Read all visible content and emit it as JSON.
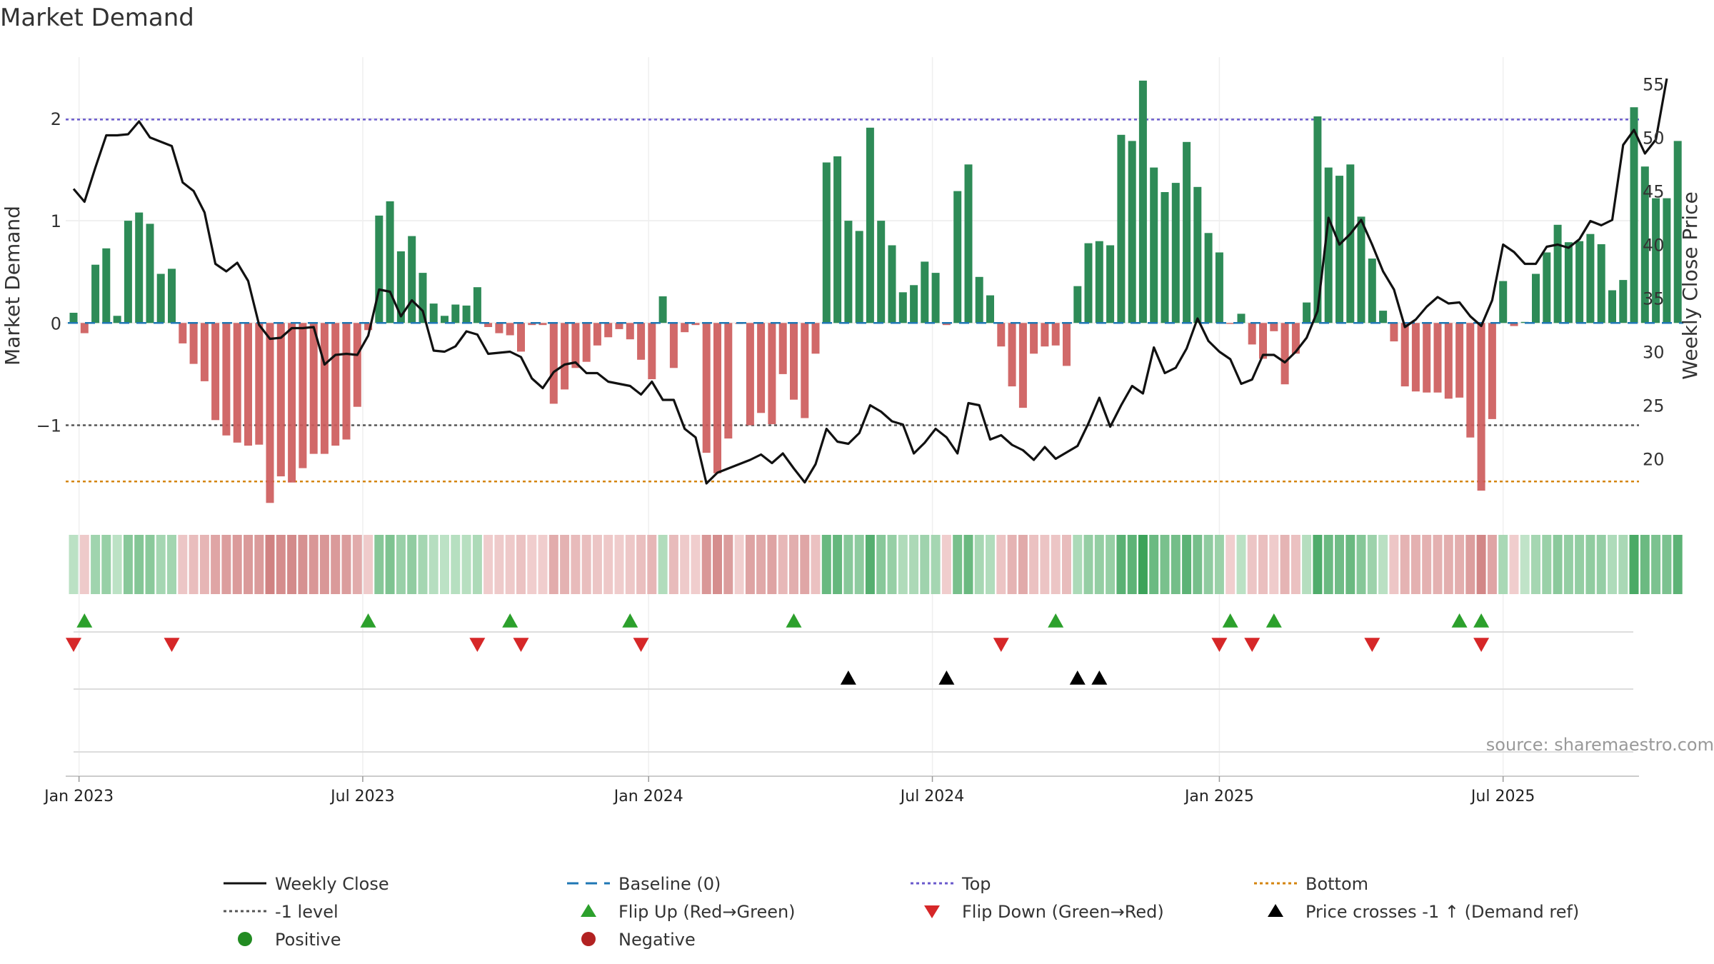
{
  "chart_data": {
    "type": "bar",
    "title": "Market Demand",
    "ylabel_left": "Market Demand",
    "ylabel_right": "Weekly Close Price",
    "source": "source: sharemaestro.com",
    "left_ylim": [
      -1.8,
      2.6
    ],
    "right_ylim": [
      15.5,
      57.5
    ],
    "left_ticks": [
      {
        "v": 2,
        "label": "2"
      },
      {
        "v": 1,
        "label": "1"
      },
      {
        "v": 0,
        "label": "0"
      },
      {
        "v": -1,
        "label": "−1"
      }
    ],
    "right_ticks": [
      {
        "v": 55,
        "label": "55"
      },
      {
        "v": 50,
        "label": "50"
      },
      {
        "v": 45,
        "label": "45"
      },
      {
        "v": 40,
        "label": "40"
      },
      {
        "v": 35,
        "label": "35"
      },
      {
        "v": 30,
        "label": "30"
      },
      {
        "v": 25,
        "label": "25"
      },
      {
        "v": 20,
        "label": "20"
      }
    ],
    "x_ticks": [
      {
        "i": 0.5,
        "label": "Jan 2023"
      },
      {
        "i": 26.5,
        "label": "Jul 2023"
      },
      {
        "i": 52.7,
        "label": "Jan 2024"
      },
      {
        "i": 78.7,
        "label": "Jul 2024"
      },
      {
        "i": 105,
        "label": "Jan 2025"
      },
      {
        "i": 131,
        "label": "Jul 2025"
      }
    ],
    "reference_lines": {
      "top": 1.99,
      "bottom": -1.55,
      "minus_one": -1.0,
      "baseline": 0
    },
    "demand": [
      0.1,
      -0.1,
      0.57,
      0.73,
      0.07,
      1.0,
      1.08,
      0.97,
      0.48,
      0.53,
      -0.2,
      -0.4,
      -0.57,
      -0.95,
      -1.1,
      -1.17,
      -1.2,
      -1.19,
      -1.76,
      -1.5,
      -1.56,
      -1.42,
      -1.28,
      -1.28,
      -1.2,
      -1.14,
      -0.82,
      -0.07,
      1.05,
      1.19,
      0.7,
      0.85,
      0.49,
      0.19,
      0.07,
      0.18,
      0.17,
      0.35,
      -0.04,
      -0.1,
      -0.12,
      -0.28,
      -0.02,
      -0.02,
      -0.79,
      -0.65,
      -0.44,
      -0.38,
      -0.22,
      -0.14,
      -0.06,
      -0.16,
      -0.36,
      -0.55,
      0.26,
      -0.44,
      -0.09,
      -0.02,
      -1.27,
      -1.47,
      -1.13,
      -0.01,
      -1.0,
      -0.88,
      -0.99,
      -0.5,
      -0.75,
      -0.93,
      -0.3,
      1.57,
      1.63,
      1.0,
      0.9,
      1.91,
      1.0,
      0.76,
      0.3,
      0.37,
      0.6,
      0.49,
      -0.02,
      1.29,
      1.55,
      0.45,
      0.27,
      -0.23,
      -0.62,
      -0.83,
      -0.3,
      -0.23,
      -0.22,
      -0.42,
      0.36,
      0.78,
      0.8,
      0.76,
      1.84,
      1.78,
      2.37,
      1.52,
      1.28,
      1.37,
      1.77,
      1.33,
      0.88,
      0.69,
      -0.01,
      0.09,
      -0.21,
      -0.35,
      -0.08,
      -0.6,
      -0.3,
      0.2,
      2.02,
      1.52,
      1.44,
      1.55,
      1.04,
      0.63,
      0.12,
      -0.18,
      -0.62,
      -0.67,
      -0.68,
      -0.68,
      -0.74,
      -0.73,
      -1.12,
      -1.64,
      -0.94,
      0.41,
      -0.03,
      0.01,
      0.48,
      0.69,
      0.96,
      0.79,
      0.8,
      0.87,
      0.77,
      0.32,
      0.42,
      2.11,
      1.53,
      1.22,
      1.22,
      1.78
    ],
    "weekly_close": [
      45.2,
      44.0,
      47.2,
      50.2,
      50.2,
      50.3,
      51.5,
      50.0,
      49.6,
      49.2,
      45.8,
      45.0,
      43.0,
      38.2,
      37.5,
      38.3,
      36.6,
      32.5,
      31.2,
      31.3,
      32.2,
      32.2,
      32.3,
      28.8,
      29.7,
      29.8,
      29.7,
      31.5,
      35.8,
      35.6,
      33.3,
      34.8,
      33.8,
      30.1,
      30.0,
      30.5,
      31.9,
      31.6,
      29.8,
      29.9,
      30.0,
      29.5,
      27.5,
      26.6,
      28.1,
      28.8,
      29.0,
      28.0,
      28.0,
      27.2,
      27.0,
      26.8,
      26.0,
      27.2,
      25.5,
      25.5,
      22.8,
      22.0,
      17.7,
      18.7,
      19.1,
      19.5,
      19.9,
      20.4,
      19.6,
      20.5,
      19.1,
      17.8,
      19.5,
      22.8,
      21.6,
      21.4,
      22.4,
      25.0,
      24.4,
      23.5,
      23.2,
      20.5,
      21.5,
      22.8,
      22.0,
      20.5,
      25.2,
      25.0,
      21.8,
      22.2,
      21.3,
      20.8,
      19.9,
      21.1,
      20.0,
      20.6,
      21.2,
      23.3,
      25.7,
      23.0,
      25.0,
      26.8,
      26.1,
      30.4,
      28.0,
      28.5,
      30.3,
      33.1,
      31.0,
      30.0,
      29.3,
      27.0,
      27.4,
      29.7,
      29.7,
      29.0,
      30.0,
      31.3,
      33.8,
      42.5,
      40.0,
      41.0,
      42.3,
      40.0,
      37.5,
      35.8,
      32.3,
      33.0,
      34.2,
      35.1,
      34.5,
      34.6,
      33.3,
      32.4,
      34.8,
      40.0,
      39.3,
      38.2,
      38.2,
      39.8,
      40.0,
      39.7,
      40.5,
      42.2,
      41.8,
      42.3,
      49.3,
      50.7,
      48.5,
      49.8,
      55.5
    ],
    "flip_up": [
      1,
      27,
      40,
      51,
      66,
      90,
      106,
      110,
      127,
      129
    ],
    "flip_down": [
      0,
      9,
      37,
      41,
      52,
      85,
      105,
      108,
      119,
      129
    ],
    "price_crosses": [
      71,
      80,
      92,
      94
    ],
    "colors": {
      "bar_positive": "#2e8b57",
      "bar_negative": "#cd5c5c",
      "close_line": "#111111",
      "baseline": "#1f77b4",
      "top_line": "#6a5acd",
      "minus_one_line": "#555555",
      "bottom_line": "#d4850f",
      "flip_up": "#2ca02c",
      "flip_down": "#d62728",
      "price_cross": "#000000",
      "positive_dot": "#228b22",
      "negative_dot": "#b22222"
    },
    "legend": [
      {
        "key": "close",
        "label": "Weekly Close"
      },
      {
        "key": "baseline",
        "label": "Baseline (0)"
      },
      {
        "key": "top",
        "label": "Top"
      },
      {
        "key": "bottom",
        "label": "Bottom"
      },
      {
        "key": "minus_one",
        "label": "-1 level"
      },
      {
        "key": "flip_up",
        "label": "Flip Up (Red→Green)"
      },
      {
        "key": "flip_down",
        "label": "Flip Down (Green→Red)"
      },
      {
        "key": "price_cross",
        "label": "Price crosses -1 ↑ (Demand ref)"
      },
      {
        "key": "positive",
        "label": "Positive"
      },
      {
        "key": "negative",
        "label": "Negative"
      }
    ]
  }
}
